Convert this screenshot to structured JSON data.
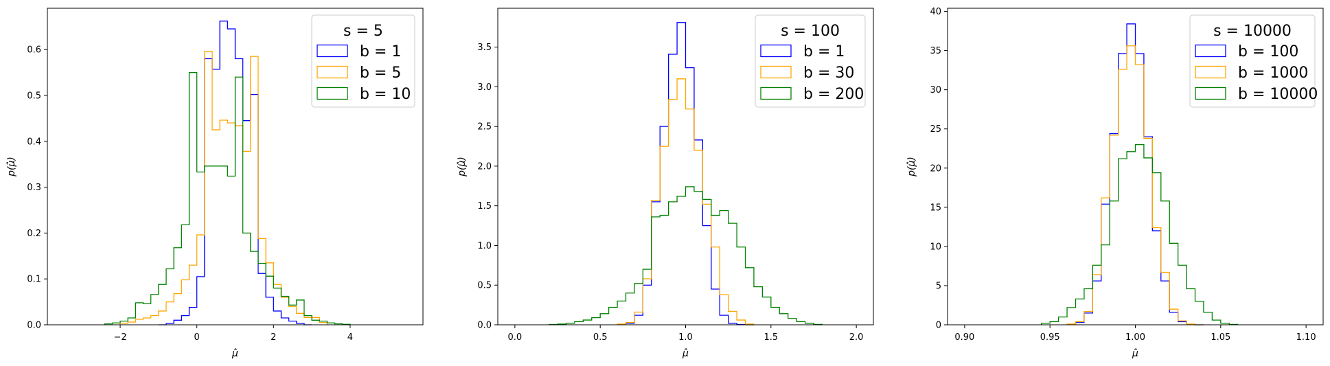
{
  "chart_data": [
    {
      "type": "histogram",
      "xlabel": "μ̂",
      "ylabel": "p(μ̂)",
      "xlim": [
        -3.9,
        5.9
      ],
      "ylim": [
        0,
        0.69
      ],
      "xticks": [
        -2,
        0,
        2,
        4
      ],
      "xtick_labels": [
        "−2",
        "0",
        "2",
        "4"
      ],
      "yticks": [
        0.0,
        0.1,
        0.2,
        0.3,
        0.4,
        0.5,
        0.6
      ],
      "ytick_labels": [
        "0.0",
        "0.1",
        "0.2",
        "0.3",
        "0.4",
        "0.5",
        "0.6"
      ],
      "legend": {
        "position": "top-right",
        "title": "s = 5"
      },
      "series": [
        {
          "name": "b = 1",
          "color": "#0000ff",
          "edges": [
            -1.0,
            -0.8,
            -0.6,
            -0.4,
            -0.2,
            0.0,
            0.2,
            0.4,
            0.6,
            0.8,
            1.0,
            1.2,
            1.4,
            1.6,
            1.8,
            2.0,
            2.2,
            2.4,
            2.6,
            2.8,
            3.0
          ],
          "values": [
            0.0,
            0.003,
            0.01,
            0.02,
            0.038,
            0.105,
            0.58,
            0.557,
            0.662,
            0.645,
            0.58,
            0.445,
            0.502,
            0.112,
            0.06,
            0.03,
            0.015,
            0.008,
            0.003,
            0.0
          ]
        },
        {
          "name": "b = 5",
          "color": "#ffa500",
          "edges": [
            -2.0,
            -1.8,
            -1.6,
            -1.4,
            -1.2,
            -1.0,
            -0.8,
            -0.6,
            -0.4,
            -0.2,
            0.0,
            0.2,
            0.4,
            0.6,
            0.8,
            1.0,
            1.2,
            1.4,
            1.6,
            1.8,
            2.0,
            2.2,
            2.4,
            2.6,
            2.8,
            3.0,
            3.2,
            3.4
          ],
          "values": [
            0.003,
            0.006,
            0.012,
            0.015,
            0.02,
            0.03,
            0.05,
            0.068,
            0.098,
            0.13,
            0.196,
            0.596,
            0.425,
            0.446,
            0.44,
            0.434,
            0.378,
            0.585,
            0.188,
            0.135,
            0.088,
            0.06,
            0.04,
            0.025,
            0.016,
            0.016,
            0.005
          ]
        },
        {
          "name": "b = 10",
          "color": "#008000",
          "edges": [
            -2.4,
            -2.2,
            -2.0,
            -1.8,
            -1.6,
            -1.4,
            -1.2,
            -1.0,
            -0.8,
            -0.6,
            -0.4,
            -0.2,
            0.0,
            0.2,
            0.4,
            0.6,
            0.8,
            1.0,
            1.2,
            1.4,
            1.6,
            1.8,
            2.0,
            2.2,
            2.4,
            2.6,
            2.8,
            3.0,
            3.2,
            3.4,
            3.6,
            3.8,
            4.0
          ],
          "values": [
            0.002,
            0.004,
            0.008,
            0.015,
            0.048,
            0.046,
            0.066,
            0.088,
            0.122,
            0.168,
            0.218,
            0.55,
            0.333,
            0.346,
            0.346,
            0.346,
            0.324,
            0.54,
            0.2,
            0.16,
            0.134,
            0.106,
            0.08,
            0.062,
            0.043,
            0.054,
            0.02,
            0.01,
            0.008,
            0.004,
            0.002,
            0.001
          ]
        }
      ]
    },
    {
      "type": "histogram",
      "xlabel": "μ̂",
      "ylabel": "p(μ̂)",
      "xlim": [
        -0.1,
        2.1
      ],
      "ylim": [
        0,
        3.99
      ],
      "xticks": [
        0.0,
        0.5,
        1.0,
        1.5,
        2.0
      ],
      "xtick_labels": [
        "0.0",
        "0.5",
        "1.0",
        "1.5",
        "2.0"
      ],
      "yticks": [
        0.0,
        0.5,
        1.0,
        1.5,
        2.0,
        2.5,
        3.0,
        3.5
      ],
      "ytick_labels": [
        "0.0",
        "0.5",
        "1.0",
        "1.5",
        "2.0",
        "2.5",
        "3.0",
        "3.5"
      ],
      "legend": {
        "position": "top-right",
        "title": "s = 100"
      },
      "series": [
        {
          "name": "b = 1",
          "color": "#0000ff",
          "edges": [
            0.6,
            0.65,
            0.7,
            0.75,
            0.8,
            0.85,
            0.9,
            0.95,
            1.0,
            1.05,
            1.1,
            1.15,
            1.2,
            1.25,
            1.3,
            1.35,
            1.4
          ],
          "values": [
            0.005,
            0.02,
            0.12,
            0.5,
            1.55,
            2.5,
            3.41,
            3.81,
            3.24,
            2.33,
            1.25,
            0.45,
            0.12,
            0.02,
            0.003,
            0.0
          ]
        },
        {
          "name": "b = 30",
          "color": "#ffa500",
          "edges": [
            0.6,
            0.65,
            0.7,
            0.75,
            0.8,
            0.85,
            0.9,
            0.95,
            1.0,
            1.05,
            1.1,
            1.15,
            1.2,
            1.25,
            1.3,
            1.35,
            1.4
          ],
          "values": [
            0.01,
            0.03,
            0.16,
            0.58,
            1.57,
            2.25,
            2.84,
            3.1,
            2.72,
            2.2,
            1.52,
            0.98,
            0.38,
            0.17,
            0.06,
            0.01
          ]
        },
        {
          "name": "b = 200",
          "color": "#008000",
          "edges": [
            0.2,
            0.25,
            0.3,
            0.35,
            0.4,
            0.45,
            0.5,
            0.55,
            0.6,
            0.65,
            0.7,
            0.75,
            0.8,
            0.85,
            0.9,
            0.95,
            1.0,
            1.05,
            1.1,
            1.15,
            1.2,
            1.25,
            1.3,
            1.35,
            1.4,
            1.45,
            1.5,
            1.55,
            1.6,
            1.65,
            1.7,
            1.75,
            1.8
          ],
          "values": [
            0.004,
            0.01,
            0.02,
            0.04,
            0.06,
            0.09,
            0.14,
            0.22,
            0.3,
            0.4,
            0.52,
            0.7,
            1.36,
            1.38,
            1.55,
            1.62,
            1.74,
            1.68,
            1.58,
            1.38,
            1.44,
            1.28,
            0.98,
            0.72,
            0.48,
            0.35,
            0.22,
            0.14,
            0.08,
            0.04,
            0.02,
            0.005
          ]
        }
      ]
    },
    {
      "type": "histogram",
      "xlabel": "μ̂",
      "ylabel": "p(μ̂)",
      "xlim": [
        0.89,
        1.11
      ],
      "ylim": [
        0,
        40.4
      ],
      "xticks": [
        0.9,
        0.95,
        1.0,
        1.05,
        1.1
      ],
      "xtick_labels": [
        "0.90",
        "0.95",
        "1.00",
        "1.05",
        "1.10"
      ],
      "yticks": [
        0,
        5,
        10,
        15,
        20,
        25,
        30,
        35,
        40
      ],
      "ytick_labels": [
        "0",
        "5",
        "10",
        "15",
        "20",
        "25",
        "30",
        "35",
        "40"
      ],
      "legend": {
        "position": "top-right",
        "title": "s = 10000"
      },
      "series": [
        {
          "name": "b = 100",
          "color": "#0000ff",
          "edges": [
            0.96,
            0.965,
            0.97,
            0.975,
            0.98,
            0.985,
            0.99,
            0.995,
            1.0,
            1.005,
            1.01,
            1.015,
            1.02,
            1.025,
            1.03,
            1.035,
            1.04
          ],
          "values": [
            0.05,
            0.3,
            1.5,
            5.6,
            15.4,
            24.4,
            34.6,
            38.4,
            34.6,
            24.0,
            12.0,
            5.6,
            1.6,
            0.4,
            0.05,
            0.0
          ]
        },
        {
          "name": "b = 1000",
          "color": "#ffa500",
          "edges": [
            0.96,
            0.965,
            0.97,
            0.975,
            0.98,
            0.985,
            0.99,
            0.995,
            1.0,
            1.005,
            1.01,
            1.015,
            1.02,
            1.025,
            1.03,
            1.035,
            1.04
          ],
          "values": [
            0.1,
            0.4,
            1.7,
            6.4,
            16.2,
            24.2,
            32.6,
            35.6,
            33.2,
            23.8,
            12.4,
            6.7,
            2.0,
            0.5,
            0.1,
            0.0
          ]
        },
        {
          "name": "b = 10000",
          "color": "#008000",
          "edges": [
            0.945,
            0.95,
            0.955,
            0.96,
            0.965,
            0.97,
            0.975,
            0.98,
            0.985,
            0.99,
            0.995,
            1.0,
            1.005,
            1.01,
            1.015,
            1.02,
            1.025,
            1.03,
            1.035,
            1.04,
            1.045,
            1.05,
            1.055,
            1.06
          ],
          "values": [
            0.2,
            0.4,
            1.0,
            2.2,
            3.3,
            4.6,
            7.6,
            10.2,
            15.8,
            21.2,
            22.1,
            23.0,
            21.3,
            19.4,
            15.8,
            10.4,
            7.6,
            4.6,
            3.0,
            1.6,
            0.6,
            0.2,
            0.05
          ]
        }
      ]
    }
  ]
}
